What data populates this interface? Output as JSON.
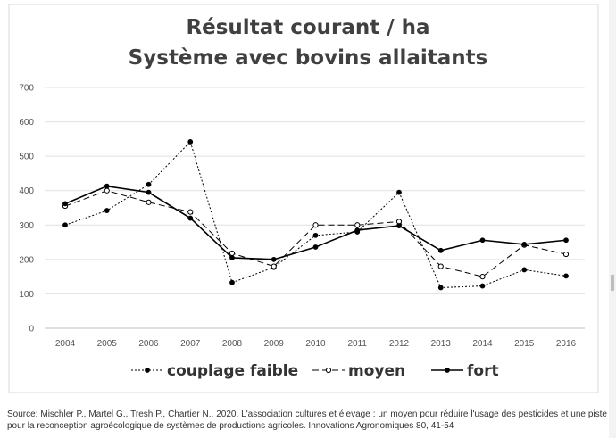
{
  "chart_data": {
    "type": "line",
    "title": "Résultat courant / ha",
    "subtitle": "Système avec bovins allaitants",
    "xlabel": "",
    "ylabel": "",
    "x": [
      "2004",
      "2005",
      "2006",
      "2007",
      "2008",
      "2009",
      "2010",
      "2011",
      "2012",
      "2013",
      "2014",
      "2015",
      "2016"
    ],
    "ylim": [
      0,
      700
    ],
    "yticks": [
      0,
      100,
      200,
      300,
      400,
      500,
      600,
      700
    ],
    "grid": true,
    "legend_position": "bottom",
    "series": [
      {
        "name": "couplage faible",
        "style": "dotted",
        "marker": "filled-circle",
        "color": "#000000",
        "values": [
          300,
          342,
          418,
          542,
          133,
          177,
          270,
          280,
          395,
          118,
          123,
          170,
          152
        ]
      },
      {
        "name": "moyen",
        "style": "dashed",
        "marker": "open-circle",
        "color": "#000000",
        "values": [
          355,
          400,
          366,
          338,
          218,
          180,
          300,
          300,
          310,
          180,
          150,
          242,
          215
        ]
      },
      {
        "name": "fort",
        "style": "solid",
        "marker": "filled-circle",
        "color": "#000000",
        "values": [
          362,
          413,
          395,
          320,
          205,
          200,
          236,
          285,
          298,
          226,
          256,
          244,
          256
        ]
      }
    ]
  },
  "source_note": "Source: Mischler P., Martel G., Tresh P., Chartier N., 2020. L'association cultures et élevage : un moyen pour réduire l'usage des pesticides et une piste pour la reconception agroécologique de systèmes de productions agricoles. Innovations Agronomiques 80, 41-54"
}
